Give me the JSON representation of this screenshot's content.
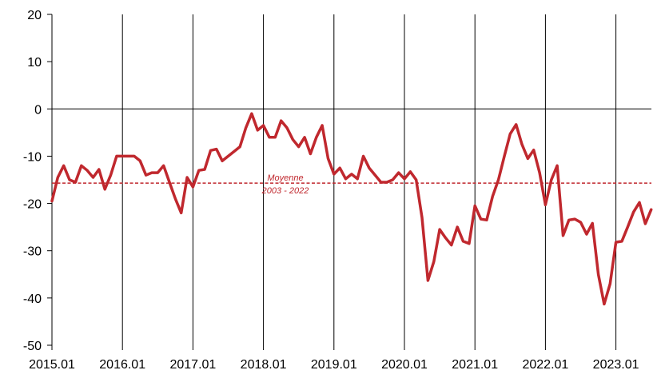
{
  "chart_data": {
    "type": "line",
    "title": "",
    "xlabel": "",
    "ylabel": "",
    "ylim": [
      -50,
      20
    ],
    "y_ticks": [
      20,
      10,
      0,
      -10,
      -20,
      -30,
      -40,
      -50
    ],
    "x_ticks": [
      "2015.01",
      "2016.01",
      "2017.01",
      "2018.01",
      "2019.01",
      "2020.01",
      "2021.01",
      "2022.01",
      "2023.01"
    ],
    "grid": "vertical lines at each year",
    "series": [
      {
        "color": "#c0282e",
        "x_start": "2015.01",
        "frequency": "monthly",
        "values": [
          -19.5,
          -14.5,
          -12,
          -15,
          -15.5,
          -12,
          -13,
          -14.5,
          -12.8,
          -17,
          -14,
          -10,
          -10,
          -10,
          -10,
          -11,
          -14,
          -13.5,
          -13.5,
          -12,
          -15.5,
          -19,
          -22,
          -14.5,
          -16.5,
          -13,
          -12.8,
          -8.8,
          -8.5,
          -11,
          -10,
          -9,
          -8,
          -4,
          -1,
          -4.5,
          -3.5,
          -6,
          -6,
          -2.5,
          -4,
          -6.5,
          -8,
          -6,
          -9.5,
          -6,
          -3.5,
          -10.5,
          -13.8,
          -12.5,
          -14.8,
          -13.8,
          -14.8,
          -10,
          -12.5,
          -14,
          -15.5,
          -15.5,
          -15,
          -13.5,
          -14.8,
          -13.3,
          -15,
          -23,
          -36.3,
          -32.3,
          -25.5,
          -27.3,
          -28.8,
          -25,
          -28,
          -28.5,
          -20.5,
          -23.3,
          -23.5,
          -18.5,
          -15,
          -10,
          -5.3,
          -3.3,
          -7.5,
          -10.5,
          -8.7,
          -13.5,
          -20.3,
          -15,
          -12,
          -26.8,
          -23.5,
          -23.3,
          -24,
          -26.5,
          -24.2,
          -35,
          -41.3,
          -37,
          -28.2,
          -28,
          -25,
          -21.8,
          -19.8,
          -24.3,
          -21.3
        ]
      }
    ],
    "reference_line": {
      "value": -15.7,
      "label_line1": "Moyenne",
      "label_line2": "2003 - 2022",
      "color": "#c0282e"
    }
  }
}
